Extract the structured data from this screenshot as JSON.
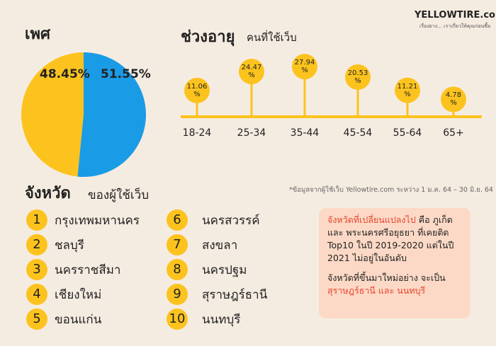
{
  "logo": {
    "brand": "YELLOWTIRE.com",
    "tagline": "เรื่องยาง... เราเกี่ยวให้คุณก่อนซื้อ"
  },
  "chart_data": [
    {
      "type": "pie",
      "title": "เพศ",
      "values": [
        48.45,
        51.55
      ],
      "value_labels": [
        "48.45%",
        "51.55%"
      ],
      "colors": [
        "#fcc31e",
        "#1a9be6"
      ]
    },
    {
      "type": "lollipop",
      "title": "ช่วงอายุ",
      "subtitle": "คนที่ใช้เว็บ",
      "categories": [
        "18-24",
        "25-34",
        "35-44",
        "45-54",
        "55-64",
        "65+"
      ],
      "values": [
        11.06,
        24.47,
        27.94,
        20.53,
        11.21,
        4.78
      ],
      "value_labels": [
        "11.06 %",
        "24.47 %",
        "27.94 %",
        "20.53 %",
        "11.21 %",
        "4.78 %"
      ],
      "color": "#fcc31e"
    }
  ],
  "provinces": {
    "title": "จังหวัด",
    "subtitle": "ของผู้ใช้เว็บ",
    "note": "*ข้อมูลจากผู้ใช้เว็บ Yellowtire.com ระหว่าง 1 ม.ค. 64 – 30 มิ.ย. 64",
    "items": [
      {
        "rank": 1,
        "name": "กรุงเทพมหานคร"
      },
      {
        "rank": 2,
        "name": "ชลบุรี"
      },
      {
        "rank": 3,
        "name": "นครราชสีมา"
      },
      {
        "rank": 4,
        "name": "เชียงใหม่"
      },
      {
        "rank": 5,
        "name": "ขอนแก่น"
      },
      {
        "rank": 6,
        "name": "นครสวรรค์"
      },
      {
        "rank": 7,
        "name": "สงขลา"
      },
      {
        "rank": 8,
        "name": "นครปฐม"
      },
      {
        "rank": 9,
        "name": "สุราษฎร์ธานี"
      },
      {
        "rank": 10,
        "name": "นนทบุรี"
      }
    ]
  },
  "box": {
    "highlight1": "จังหวัดที่เปลี่ยนแปลงไป",
    "text1": " คือ ภูเก็ต และ พระนครศรีอยุธยา ที่เคยติด Top10 ในปี 2019-2020 แต่ในปี 2021 ไม่อยู่ในอันดับ",
    "text2": "จังหวัดที่ขึ้นมาใหม่อย่าง จะเป็น ",
    "highlight2": "สุราษฎร์ธานี และ นนทบุรี"
  }
}
